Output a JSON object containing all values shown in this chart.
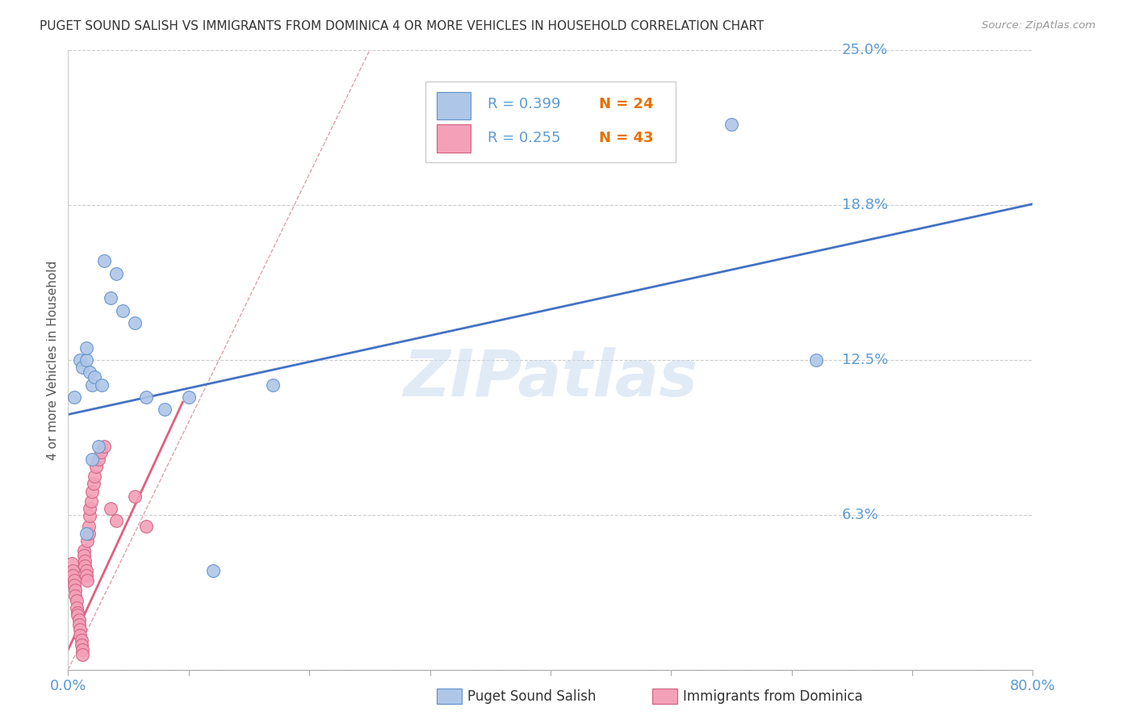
{
  "title": "PUGET SOUND SALISH VS IMMIGRANTS FROM DOMINICA 4 OR MORE VEHICLES IN HOUSEHOLD CORRELATION CHART",
  "source": "Source: ZipAtlas.com",
  "ylabel": "4 or more Vehicles in Household",
  "xlim": [
    0.0,
    0.8
  ],
  "ylim": [
    0.0,
    0.25
  ],
  "yticks": [
    0.0,
    0.0625,
    0.125,
    0.1875,
    0.25
  ],
  "ytick_labels": [
    "",
    "6.3%",
    "12.5%",
    "18.8%",
    "25.0%"
  ],
  "xticks": [
    0.0,
    0.1,
    0.2,
    0.3,
    0.4,
    0.5,
    0.6,
    0.7,
    0.8
  ],
  "xtick_labels": [
    "0.0%",
    "",
    "",
    "",
    "",
    "",
    "",
    "",
    "80.0%"
  ],
  "blue_color": "#AEC6E8",
  "pink_color": "#F4A0B8",
  "blue_line_color": "#4472C4",
  "pink_line_color": "#E06080",
  "diag_line_color": "#E0A0A8",
  "axis_label_color": "#5B9BD5",
  "N_color": "#E87000",
  "legend_blue_R": "R = 0.399",
  "legend_blue_N": "N = 24",
  "legend_pink_R": "R = 0.255",
  "legend_pink_N": "N = 43",
  "blue_scatter_x": [
    0.005,
    0.01,
    0.012,
    0.015,
    0.015,
    0.018,
    0.02,
    0.02,
    0.022,
    0.025,
    0.028,
    0.03,
    0.035,
    0.04,
    0.045,
    0.055,
    0.065,
    0.08,
    0.1,
    0.12,
    0.17,
    0.55,
    0.62,
    0.015
  ],
  "blue_scatter_y": [
    0.11,
    0.125,
    0.122,
    0.125,
    0.13,
    0.12,
    0.115,
    0.085,
    0.118,
    0.09,
    0.115,
    0.165,
    0.15,
    0.16,
    0.145,
    0.14,
    0.11,
    0.105,
    0.11,
    0.04,
    0.115,
    0.22,
    0.125,
    0.055
  ],
  "pink_scatter_x": [
    0.003,
    0.004,
    0.004,
    0.005,
    0.005,
    0.006,
    0.006,
    0.007,
    0.007,
    0.008,
    0.008,
    0.009,
    0.009,
    0.01,
    0.01,
    0.011,
    0.011,
    0.012,
    0.012,
    0.013,
    0.013,
    0.014,
    0.014,
    0.015,
    0.015,
    0.016,
    0.016,
    0.017,
    0.017,
    0.018,
    0.018,
    0.019,
    0.02,
    0.021,
    0.022,
    0.023,
    0.025,
    0.027,
    0.03,
    0.035,
    0.04,
    0.055,
    0.065
  ],
  "pink_scatter_y": [
    0.043,
    0.04,
    0.038,
    0.036,
    0.034,
    0.032,
    0.03,
    0.028,
    0.025,
    0.023,
    0.022,
    0.02,
    0.018,
    0.016,
    0.014,
    0.012,
    0.01,
    0.008,
    0.006,
    0.048,
    0.046,
    0.044,
    0.042,
    0.04,
    0.038,
    0.036,
    0.052,
    0.055,
    0.058,
    0.062,
    0.065,
    0.068,
    0.072,
    0.075,
    0.078,
    0.082,
    0.085,
    0.088,
    0.09,
    0.065,
    0.06,
    0.07,
    0.058
  ],
  "blue_line_x0": 0.0,
  "blue_line_y0": 0.103,
  "blue_line_x1": 0.8,
  "blue_line_y1": 0.188,
  "pink_line_x0": 0.0,
  "pink_line_y0": 0.008,
  "pink_line_x1": 0.095,
  "pink_line_y1": 0.108,
  "diag_line_x0": 0.0,
  "diag_line_y0": 0.0,
  "diag_line_x1": 0.25,
  "diag_line_y1": 0.25,
  "watermark": "ZIPatlas",
  "background_color": "#FFFFFF"
}
